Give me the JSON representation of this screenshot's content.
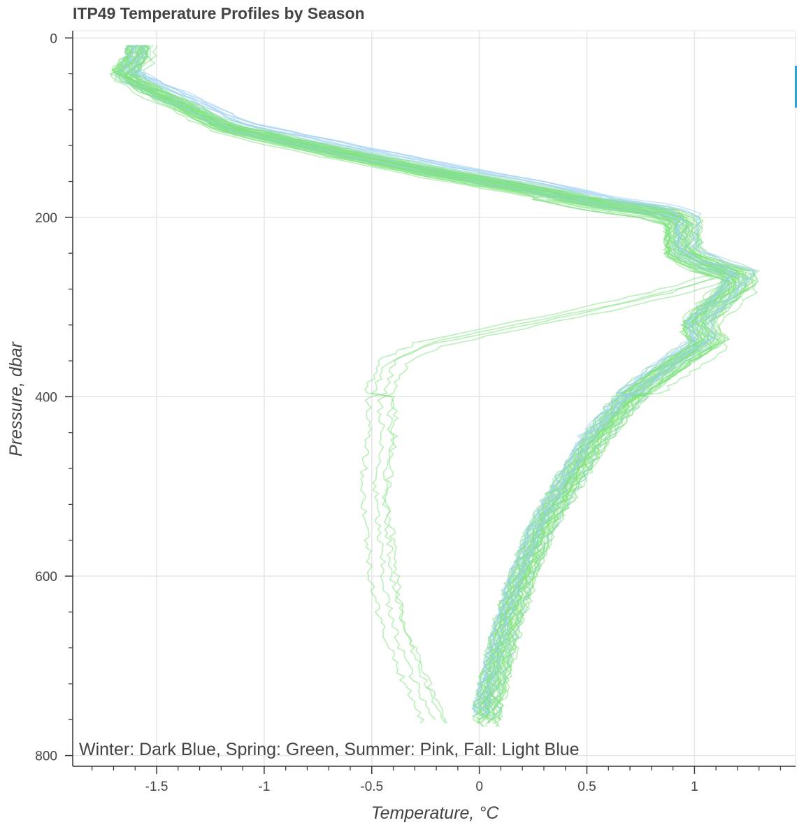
{
  "chart_data": {
    "type": "line",
    "title": "ITP49 Temperature Profiles by Season",
    "xlabel": "Temperature, °C",
    "ylabel": "Pressure, dbar",
    "xlim": [
      -1.89,
      1.47
    ],
    "ylim": [
      812,
      -8
    ],
    "y_inverted": true,
    "grid": true,
    "x_ticks": [
      -1.5,
      -1,
      -0.5,
      0,
      0.5,
      1
    ],
    "x_tick_labels": [
      "-1.5",
      "-1",
      "-0.5",
      "0",
      "0.5",
      "1"
    ],
    "y_ticks": [
      0,
      200,
      400,
      600,
      800
    ],
    "y_tick_labels": [
      "0",
      "200",
      "400",
      "600",
      "800"
    ],
    "annotation": "Winter: Dark Blue,    Spring: Green,    Summer: Pink,    Fall: Light Blue",
    "series": [
      {
        "color": "#7fe27f",
        "profile_count": 40,
        "representative_profile": {
          "pressure": [
            8,
            25,
            40,
            55,
            75,
            100,
            125,
            150,
            170,
            185,
            195,
            205,
            215,
            240,
            255,
            265,
            280,
            300,
            320,
            340,
            360,
            400,
            450,
            500,
            550,
            600,
            650,
            700,
            740,
            760
          ],
          "temperature": [
            -1.57,
            -1.58,
            -1.65,
            -1.55,
            -1.38,
            -1.18,
            -0.72,
            -0.22,
            0.25,
            0.55,
            0.85,
            0.95,
            0.95,
            0.95,
            1.08,
            1.22,
            1.2,
            1.1,
            1.02,
            1.08,
            0.95,
            0.72,
            0.55,
            0.42,
            0.3,
            0.22,
            0.15,
            0.1,
            0.06,
            0.05
          ]
        }
      },
      {
        "color": "#9dd0f0",
        "profile_count": 10,
        "representative_profile": {
          "pressure": [
            8,
            25,
            40,
            55,
            75,
            100,
            125,
            150,
            170,
            185,
            195,
            205,
            215,
            240,
            255,
            265,
            280,
            300,
            320,
            340,
            360,
            400,
            450,
            500,
            550,
            600,
            650,
            700,
            740,
            760
          ],
          "temperature": [
            -1.57,
            -1.6,
            -1.63,
            -1.5,
            -1.32,
            -1.1,
            -0.62,
            -0.1,
            0.35,
            0.62,
            0.9,
            0.98,
            0.97,
            0.97,
            1.1,
            1.24,
            1.18,
            1.12,
            1.02,
            1.05,
            0.92,
            0.7,
            0.52,
            0.4,
            0.28,
            0.2,
            0.13,
            0.08,
            0.04,
            0.03
          ]
        }
      },
      {
        "color": "#7fe27f",
        "profile_count": 4,
        "representative_profile": {
          "pressure": [
            8,
            25,
            40,
            55,
            75,
            100,
            125,
            150,
            170,
            185,
            195,
            205,
            215,
            240,
            255,
            265,
            280,
            300,
            320,
            340,
            360,
            380,
            400,
            450,
            500,
            550,
            600,
            650,
            700,
            740,
            760
          ],
          "temperature": [
            -1.57,
            -1.6,
            -1.65,
            -1.55,
            -1.38,
            -1.15,
            -0.7,
            -0.2,
            0.28,
            0.58,
            0.88,
            0.96,
            0.96,
            0.96,
            1.05,
            1.15,
            0.95,
            0.6,
            0.2,
            -0.2,
            -0.38,
            -0.42,
            -0.45,
            -0.45,
            -0.48,
            -0.46,
            -0.44,
            -0.4,
            -0.32,
            -0.25,
            -0.2
          ]
        }
      }
    ]
  }
}
